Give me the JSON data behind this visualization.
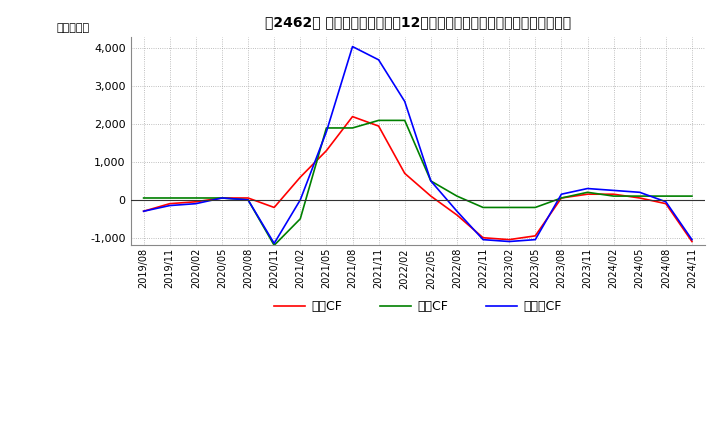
{
  "title": "　2462　 キャッシュフローの12か月移動合計の対前年同期増減額の推移",
  "ylabel": "（百万円）",
  "ylim": [
    -1200,
    4300
  ],
  "yticks": [
    -1000,
    0,
    1000,
    2000,
    3000,
    4000
  ],
  "x_labels": [
    "2019/08",
    "2019/11",
    "2020/02",
    "2020/05",
    "2020/08",
    "2020/11",
    "2021/02",
    "2021/05",
    "2021/08",
    "2021/11",
    "2022/02",
    "2022/05",
    "2022/08",
    "2022/11",
    "2023/02",
    "2023/05",
    "2023/08",
    "2023/11",
    "2024/02",
    "2024/05",
    "2024/08",
    "2024/11"
  ],
  "operating_cf": [
    -300,
    -100,
    -50,
    50,
    50,
    -200,
    600,
    1300,
    2200,
    1950,
    700,
    100,
    -400,
    -1000,
    -1050,
    -950,
    50,
    150,
    150,
    50,
    -100,
    -1100
  ],
  "investing_cf": [
    50,
    50,
    50,
    50,
    0,
    -1200,
    -500,
    1900,
    1900,
    2100,
    2100,
    500,
    100,
    -200,
    -200,
    -200,
    50,
    200,
    100,
    100,
    100,
    100
  ],
  "free_cf": [
    -300,
    -150,
    -100,
    50,
    0,
    -1150,
    0,
    1800,
    4050,
    3700,
    2600,
    500,
    -300,
    -1050,
    -1100,
    -1050,
    150,
    300,
    250,
    200,
    -50,
    -1050
  ],
  "color_operating": "#ff0000",
  "color_investing": "#008000",
  "color_free": "#0000ff",
  "grid_color": "#aaaaaa",
  "background_color": "#ffffff",
  "legend_labels": [
    "営業CF",
    "投資CF",
    "フリーCF"
  ]
}
